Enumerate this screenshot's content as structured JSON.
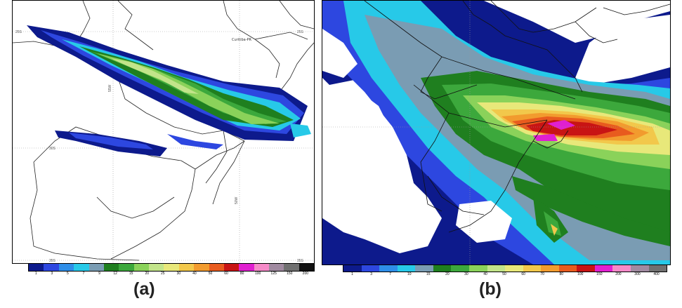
{
  "panels": [
    {
      "id": "a",
      "caption": "(a)",
      "place_label": "Curitiba-PR",
      "grid_labels": [
        "25S",
        "25S",
        "30S",
        "35S",
        "35S",
        "55W",
        "50W"
      ],
      "colorbar": {
        "ticks": [
          "1",
          "3",
          "5",
          "7",
          "9",
          "12",
          "15",
          "20",
          "25",
          "30",
          "40",
          "50",
          "60",
          "80",
          "100",
          "125",
          "150",
          "200"
        ],
        "colors": [
          "#0d1a8c",
          "#2d47e0",
          "#2e8ee8",
          "#27c9e8",
          "#7a9cb3",
          "#1f7f1f",
          "#3ca83c",
          "#8ad25a",
          "#c2e48a",
          "#e8e87a",
          "#f2c84b",
          "#f29b2e",
          "#e85b1e",
          "#c81414",
          "#e020d0",
          "#f58ac8",
          "#a08aa0",
          "#707070",
          "#111111"
        ]
      }
    },
    {
      "id": "b",
      "caption": "(b)",
      "colorbar": {
        "ticks": [
          "1",
          "3",
          "7",
          "10",
          "15",
          "20",
          "30",
          "40",
          "50",
          "60",
          "70",
          "80",
          "100",
          "150",
          "200",
          "300",
          "400"
        ],
        "colors": [
          "#0d1a8c",
          "#2d47e0",
          "#2e8ee8",
          "#27c9e8",
          "#7a9cb3",
          "#1f7f1f",
          "#3ca83c",
          "#8ad25a",
          "#c2e48a",
          "#e8e87a",
          "#f2c84b",
          "#f29b2e",
          "#e85b1e",
          "#c81414",
          "#e020d0",
          "#f58ac8",
          "#a08aa0",
          "#707070"
        ]
      }
    }
  ]
}
